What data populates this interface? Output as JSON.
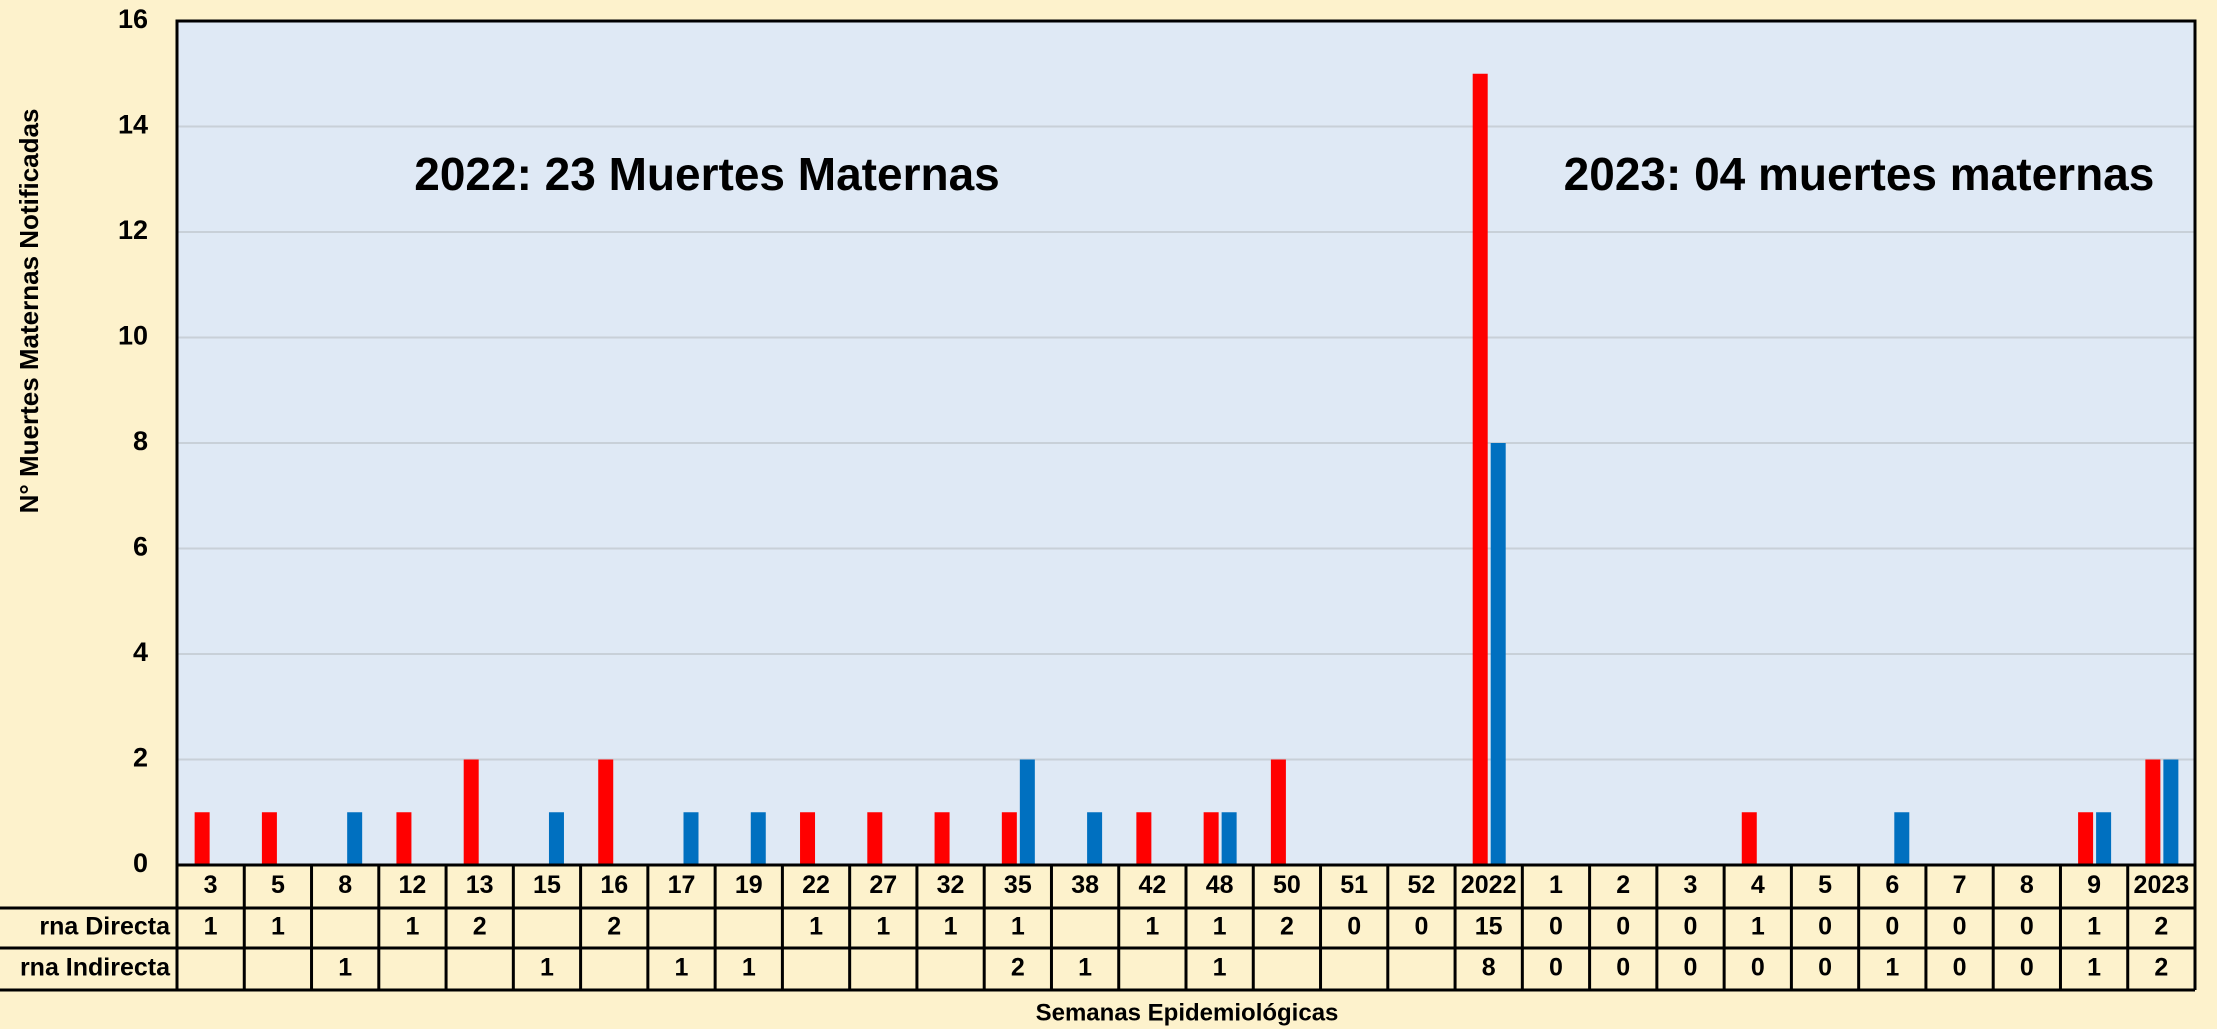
{
  "chart_data": {
    "type": "bar",
    "y_label": "N° Muertes Maternas Notificadas",
    "x_label": "Semanas Epidemiológicas",
    "annotations": [
      "2022: 23 Muertes Maternas",
      "2023: 04 muertes maternas"
    ],
    "categories": [
      "3",
      "5",
      "8",
      "12",
      "13",
      "15",
      "16",
      "17",
      "19",
      "22",
      "27",
      "32",
      "35",
      "38",
      "42",
      "48",
      "50",
      "51",
      "52",
      "2022",
      "1",
      "2",
      "3",
      "4",
      "5",
      "6",
      "7",
      "8",
      "9",
      "2023"
    ],
    "series": [
      {
        "name": "rna Directa",
        "color": "#ff0000",
        "values": [
          1,
          1,
          null,
          1,
          2,
          null,
          2,
          null,
          null,
          1,
          1,
          1,
          1,
          null,
          1,
          1,
          2,
          0,
          0,
          15,
          0,
          0,
          0,
          1,
          0,
          0,
          0,
          0,
          1,
          2
        ]
      },
      {
        "name": "rna Indirecta",
        "color": "#0070c0",
        "values": [
          null,
          null,
          1,
          null,
          null,
          1,
          null,
          1,
          1,
          null,
          null,
          null,
          2,
          1,
          null,
          1,
          null,
          null,
          null,
          8,
          0,
          0,
          0,
          0,
          0,
          1,
          0,
          0,
          1,
          2
        ]
      }
    ],
    "ylim": [
      0,
      16
    ],
    "yticks": [
      0,
      2,
      4,
      6,
      8,
      10,
      12,
      14,
      16
    ],
    "grid": true
  }
}
